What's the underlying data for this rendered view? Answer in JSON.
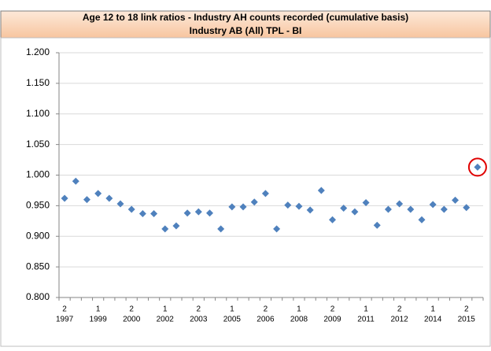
{
  "chart_data": {
    "type": "scatter-category",
    "title": "Age 12 to 18 link ratios - Industry AH counts recorded (cumulative basis)",
    "subtitle": "Industry AB (All) TPL - BI",
    "category_halves": [
      "2",
      null,
      null,
      "1",
      null,
      null,
      "2",
      null,
      null,
      "1",
      null,
      null,
      "2",
      null,
      null,
      "1",
      null,
      null,
      "2",
      null,
      null,
      "1",
      null,
      null,
      "2",
      null,
      null,
      "1",
      null,
      null,
      "2",
      null,
      null,
      "1",
      null,
      null,
      "2",
      null
    ],
    "category_years": [
      "1997",
      null,
      null,
      "1999",
      null,
      null,
      "2000",
      null,
      null,
      "2002",
      null,
      null,
      "2003",
      null,
      null,
      "2005",
      null,
      null,
      "2006",
      null,
      null,
      "2008",
      null,
      null,
      "2009",
      null,
      null,
      "2011",
      null,
      null,
      "2012",
      null,
      null,
      "2014",
      null,
      null,
      "2015",
      null
    ],
    "values": [
      0.962,
      0.99,
      0.96,
      0.97,
      0.962,
      0.953,
      0.944,
      0.937,
      0.937,
      0.912,
      0.917,
      0.938,
      0.94,
      0.938,
      0.912,
      0.948,
      0.948,
      0.956,
      0.97,
      0.912,
      0.951,
      0.949,
      0.943,
      0.975,
      0.927,
      0.946,
      0.94,
      0.955,
      0.918,
      0.944,
      0.953,
      0.944,
      0.927,
      0.952,
      0.944,
      0.959,
      0.947,
      1.013
    ],
    "color": "#4f81bd",
    "marker": "diamond",
    "highlight": {
      "index": 37,
      "color": "#e00000"
    },
    "ylim": [
      0.8,
      1.2
    ],
    "yticks": [
      {
        "value": 0.8,
        "label": "0.800"
      },
      {
        "value": 0.85,
        "label": "0.850"
      },
      {
        "value": 0.9,
        "label": "0.900"
      },
      {
        "value": 0.95,
        "label": "0.950"
      },
      {
        "value": 1.0,
        "label": "1.000"
      },
      {
        "value": 1.05,
        "label": "1.050"
      },
      {
        "value": 1.1,
        "label": "1.100"
      },
      {
        "value": 1.15,
        "label": "1.150"
      },
      {
        "value": 1.2,
        "label": "1.200"
      }
    ],
    "grid": true
  }
}
